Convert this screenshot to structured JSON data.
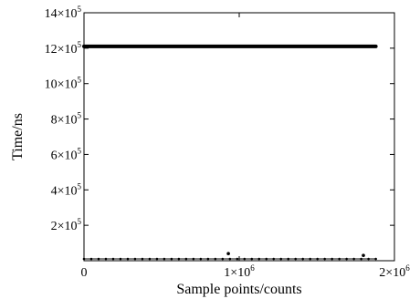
{
  "chart_data": {
    "type": "scatter",
    "title": "",
    "xlabel": "Sample points/counts",
    "ylabel": "Time/ns",
    "xlim": [
      0,
      2000000
    ],
    "ylim": [
      0,
      1400000
    ],
    "x_ticks": [
      {
        "value": 0,
        "mantissa": "0",
        "exponent": ""
      },
      {
        "value": 1000000,
        "mantissa": "1×10",
        "exponent": "6"
      },
      {
        "value": 2000000,
        "mantissa": "2×10",
        "exponent": "6"
      }
    ],
    "y_ticks": [
      {
        "value": 200000,
        "mantissa": "2×10",
        "exponent": "5"
      },
      {
        "value": 400000,
        "mantissa": "4×10",
        "exponent": "5"
      },
      {
        "value": 600000,
        "mantissa": "6×10",
        "exponent": "5"
      },
      {
        "value": 800000,
        "mantissa": "8×10",
        "exponent": "5"
      },
      {
        "value": 1000000,
        "mantissa": "10×10",
        "exponent": "5"
      },
      {
        "value": 1200000,
        "mantissa": "12×10",
        "exponent": "5"
      },
      {
        "value": 1400000,
        "mantissa": "14×10",
        "exponent": "5"
      }
    ],
    "grid": false,
    "series": [
      {
        "role": "upper band",
        "color": "#000000",
        "x_range": [
          0,
          1880000
        ],
        "y": 1210000
      },
      {
        "role": "lower band",
        "color": "#000000",
        "x_range": [
          0,
          1880000
        ],
        "y": 10000,
        "outliers": [
          {
            "x": 930000,
            "y": 40000
          },
          {
            "x": 1800000,
            "y": 30000
          }
        ]
      }
    ]
  }
}
